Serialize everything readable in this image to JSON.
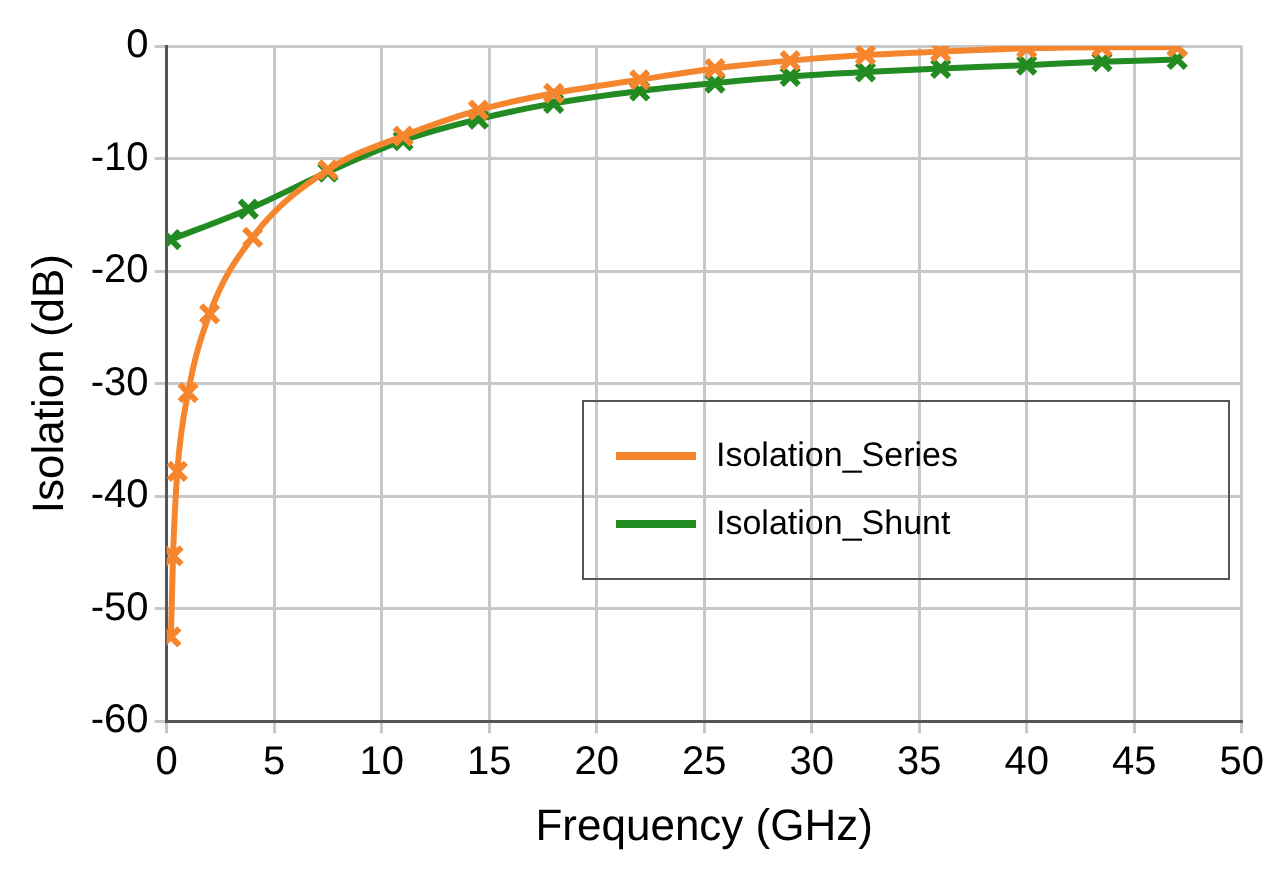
{
  "chart_data": {
    "type": "line",
    "xlabel": "Frequency (GHz)",
    "ylabel": "Isolation (dB)",
    "xlim": [
      0,
      50
    ],
    "xticks": [
      0,
      5,
      10,
      15,
      20,
      25,
      30,
      35,
      40,
      45,
      50
    ],
    "ylim": [
      -60,
      0
    ],
    "yticks": [
      -60,
      -50,
      -40,
      -30,
      -20,
      -10,
      0
    ],
    "grid": true,
    "legend": "right",
    "marker": "cross",
    "line_style": "solid",
    "series": [
      {
        "name": "Isolation_Series",
        "color": "#f5862e",
        "x": [
          0.2,
          0.3,
          0.5,
          1,
          2,
          4,
          7.5,
          11,
          14.5,
          18,
          22,
          25.5,
          29,
          32.5,
          36,
          40,
          43.5,
          47
        ],
        "values": [
          -52.5,
          -45.3,
          -37.8,
          -30.8,
          -23.8,
          -17,
          -11,
          -8,
          -5.7,
          -4.2,
          -3,
          -2,
          -1.3,
          -0.8,
          -0.5,
          -0.2,
          -0.1,
          -0.1
        ]
      },
      {
        "name": "Isolation_Shunt",
        "color": "#228b22",
        "x": [
          0.2,
          3.8,
          7.5,
          11,
          14.5,
          18,
          22,
          25.5,
          29,
          32.5,
          36,
          40,
          43.5,
          47
        ],
        "values": [
          -17.2,
          -14.5,
          -11.2,
          -8.4,
          -6.5,
          -5.1,
          -4,
          -3.3,
          -2.7,
          -2.3,
          -2,
          -1.7,
          -1.4,
          -1.2
        ]
      }
    ]
  }
}
